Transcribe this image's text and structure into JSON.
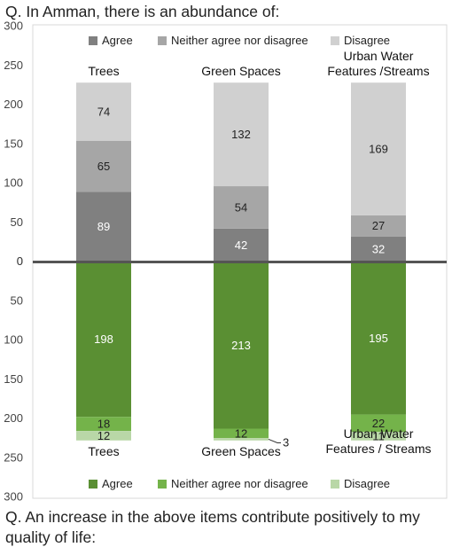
{
  "question_top": "Q. In Amman, there is an abundance of:",
  "question_bottom": "Q. An increase in the above items contribute positively to my quality of life:",
  "chart_data": [
    {
      "type": "bar",
      "stacked": true,
      "direction": "up",
      "categories": [
        "Trees",
        "Green Spaces",
        "Urban Water Features /Streams"
      ],
      "series": [
        {
          "name": "Agree",
          "values": [
            89,
            42,
            32
          ],
          "color": "#808080",
          "label_color": "#ffffff"
        },
        {
          "name": "Neither agree nor disagree",
          "values": [
            65,
            54,
            27
          ],
          "color": "#a6a6a6",
          "label_color": "#222222"
        },
        {
          "name": "Disagree",
          "values": [
            74,
            132,
            169
          ],
          "color": "#d0d0d0",
          "label_color": "#222222"
        }
      ],
      "yticks": [
        0,
        50,
        100,
        150,
        200,
        250,
        300
      ],
      "ylim": [
        0,
        300
      ],
      "legend_position": "top"
    },
    {
      "type": "bar",
      "stacked": true,
      "direction": "down",
      "categories": [
        "Trees",
        "Green Spaces",
        "Urban Water Features / Streams"
      ],
      "series": [
        {
          "name": "Agree",
          "values": [
            198,
            213,
            195
          ],
          "color": "#5a8f33",
          "label_color": "#ffffff"
        },
        {
          "name": "Neither agree nor disagree",
          "values": [
            18,
            12,
            22
          ],
          "color": "#74b34a",
          "label_color": "#222222"
        },
        {
          "name": "Disagree",
          "values": [
            12,
            3,
            11
          ],
          "color": "#b9d7a7",
          "label_color": "#222222"
        }
      ],
      "yticks": [
        0,
        50,
        100,
        150,
        200,
        250,
        300
      ],
      "ylim": [
        0,
        300
      ],
      "legend_position": "bottom"
    }
  ]
}
